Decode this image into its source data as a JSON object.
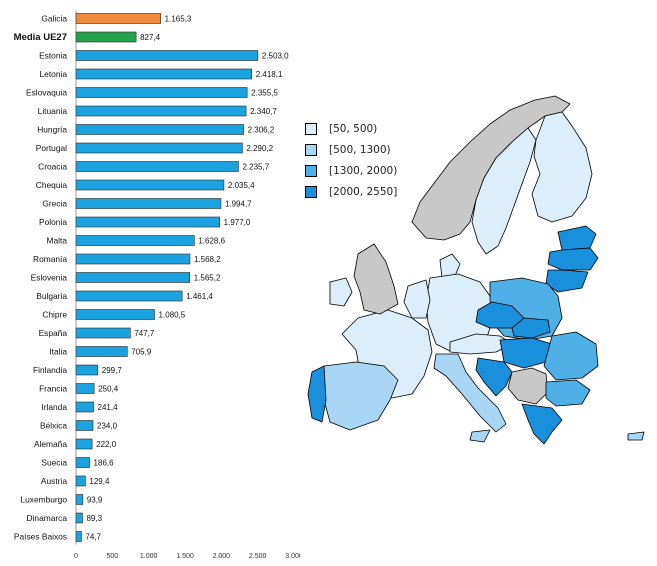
{
  "chart_data": {
    "type": "bar",
    "orientation": "horizontal",
    "categories": [
      "Galicia",
      "Media  UE27",
      "Estonia",
      "Letonia",
      "Eslovaquia",
      "Lituania",
      "Hungría",
      "Portugal",
      "Croacia",
      "Chequia",
      "Grecia",
      "Polonia",
      "Malta",
      "Romanía",
      "Eslovenia",
      "Bulgaria",
      "Chipre",
      "España",
      "Italia",
      "Finlandia",
      "Francia",
      "Irlanda",
      "Bélxica",
      "Alemaña",
      "Suecia",
      "Austria",
      "Luxemburgo",
      "Dinamarca",
      "Países Baixos"
    ],
    "values": [
      1165.3,
      827.4,
      2503.0,
      2418.1,
      2355.5,
      2340.7,
      2306.2,
      2290.2,
      2235.7,
      2035.4,
      1994.7,
      1977.0,
      1628.6,
      1568.2,
      1565.2,
      1461.4,
      1080.5,
      747.7,
      705.9,
      299.7,
      250.4,
      241.4,
      234.0,
      222.0,
      186.6,
      129.4,
      93.9,
      89.3,
      74.7
    ],
    "value_labels": [
      "1.165,3",
      "827,4",
      "2.503,0",
      "2.418,1",
      "2.355,5",
      "2.340,7",
      "2.306,2",
      "2.290,2",
      "2.235,7",
      "2.035,4",
      "1.994,7",
      "1.977,0",
      "1.628,6",
      "1.568,2",
      "1.565,2",
      "1.461,4",
      "1.080,5",
      "747,7",
      "705,9",
      "299,7",
      "250,4",
      "241,4",
      "234,0",
      "222,0",
      "186,6",
      "129,4",
      "93,9",
      "89,3",
      "74,7"
    ],
    "bar_colors": [
      "#f08a3c",
      "#22a34a",
      "#1aa3e0",
      "#1aa3e0",
      "#1aa3e0",
      "#1aa3e0",
      "#1aa3e0",
      "#1aa3e0",
      "#1aa3e0",
      "#1aa3e0",
      "#1aa3e0",
      "#1aa3e0",
      "#1aa3e0",
      "#1aa3e0",
      "#1aa3e0",
      "#1aa3e0",
      "#1aa3e0",
      "#1aa3e0",
      "#1aa3e0",
      "#1aa3e0",
      "#1aa3e0",
      "#1aa3e0",
      "#1aa3e0",
      "#1aa3e0",
      "#1aa3e0",
      "#1aa3e0",
      "#1aa3e0",
      "#1aa3e0",
      "#1aa3e0"
    ],
    "bold_categories": [
      "Media  UE27"
    ],
    "xlim": [
      0,
      3000
    ],
    "x_ticks": [
      0,
      500,
      1000,
      1500,
      2000,
      2500,
      3000
    ],
    "x_tick_labels": [
      "0",
      "500",
      "1.000",
      "1.500",
      "2.000",
      "2.500",
      "3.000"
    ],
    "grid": false,
    "title": "",
    "xlabel": "",
    "ylabel": ""
  },
  "legend": {
    "placement": "center",
    "items": [
      {
        "label": "[50, 500)",
        "color": "#dbeefa"
      },
      {
        "label": "[500, 1300)",
        "color": "#a9d6f5"
      },
      {
        "label": "[1300, 2000)",
        "color": "#4fb0e8"
      },
      {
        "label": "[2000, 2550]",
        "color": "#1a8fdb"
      }
    ]
  },
  "map": {
    "no_data_color": "#c8c8c8",
    "border_color": "#000000"
  }
}
